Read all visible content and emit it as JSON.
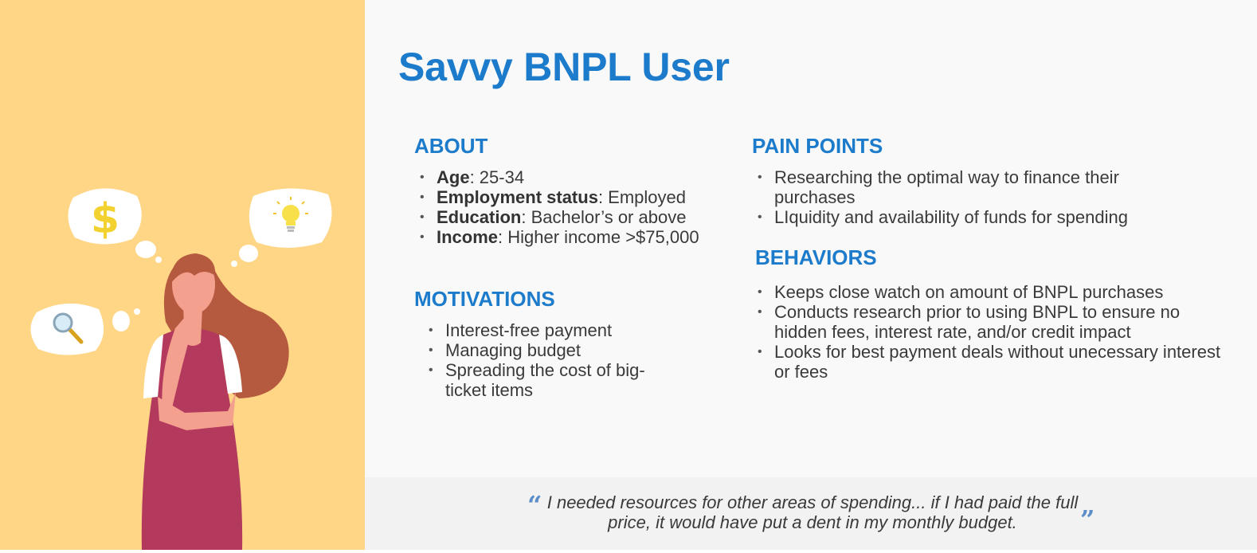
{
  "persona": {
    "title": "Savvy BNPL User"
  },
  "illustration": {
    "bubble_icons": [
      "dollar-icon",
      "lightbulb-icon",
      "magnifier-icon"
    ],
    "dollar_symbol": "$"
  },
  "about": {
    "heading": "ABOUT",
    "items": [
      {
        "label": "Age",
        "value": ": 25-34"
      },
      {
        "label": "Employment status",
        "value": ": Employed"
      },
      {
        "label": "Education",
        "value": ": Bachelor’s or above"
      },
      {
        "label": "Income",
        "value": ": Higher income >$75,000"
      }
    ]
  },
  "motivations": {
    "heading": "MOTIVATIONS",
    "items": [
      "Interest-free payment",
      "Managing budget",
      "Spreading the cost of big-ticket items"
    ]
  },
  "pain_points": {
    "heading": "PAIN POINTS",
    "items": [
      "Researching the optimal way to finance their purchases",
      "LIquidity and availability of funds for spending"
    ]
  },
  "behaviors": {
    "heading": "BEHAVIORS",
    "items": [
      "Keeps close watch on amount of BNPL purchases",
      "Conducts research prior to using BNPL to ensure no hidden fees, interest rate, and/or credit impact",
      "Looks for best payment deals without unecessary interest or fees"
    ]
  },
  "quote": {
    "open_mark": "“",
    "text": "I needed resources for other areas of spending... if I had paid the full price, it would have put a dent in my monthly budget.",
    "close_mark": "”"
  },
  "colors": {
    "accent_blue": "#1C7BCB",
    "illustration_bg": "#FFD586",
    "content_bg": "#F9F9F9",
    "quote_bg": "#F2F2F2",
    "dress": "#B3395D",
    "hair": "#B55A3F",
    "skin": "#F4A08E"
  }
}
